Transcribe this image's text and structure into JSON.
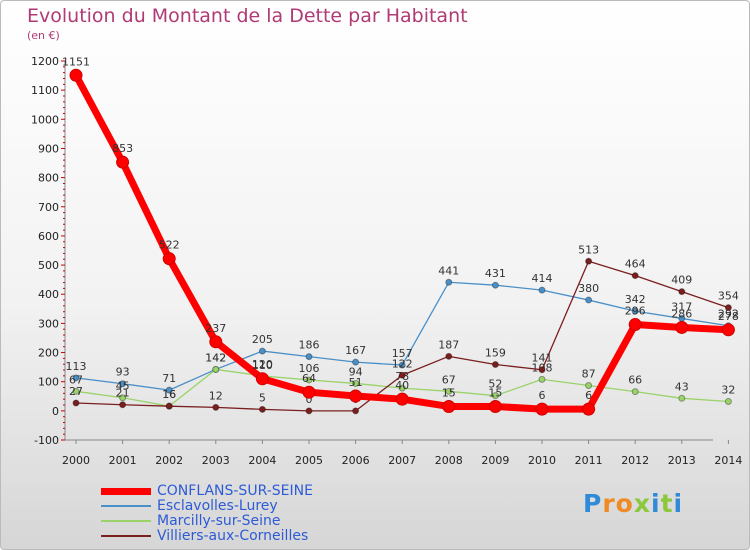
{
  "title": "Evolution du Montant de la Dette par Habitant",
  "unit": "(en €)",
  "brand": [
    "P",
    "r",
    "o",
    "x",
    "i",
    "t",
    "i"
  ],
  "brand_colors": [
    "#2f8ad8",
    "#f08a24",
    "#f08a24",
    "#8cc83c",
    "#2f8ad8",
    "#8cc83c",
    "#2f8ad8"
  ],
  "chart_data": {
    "type": "line",
    "title": "Evolution du Montant de la Dette par Habitant",
    "ylabel": "(en €)",
    "xlabel": "",
    "ylim": [
      -100,
      1200
    ],
    "yticks": [
      "-100",
      "0",
      "100",
      "200",
      "300",
      "400",
      "500",
      "600",
      "700",
      "800",
      "900",
      "1000",
      "1100",
      "1200"
    ],
    "categories": [
      "2000",
      "2001",
      "2002",
      "2003",
      "2004",
      "2005",
      "2006",
      "2007",
      "2008",
      "2009",
      "2010",
      "2011",
      "2012",
      "2013",
      "2014"
    ],
    "series": [
      {
        "name": "Esclavolles-Lurey",
        "color": "#4a90c8",
        "values": [
          113,
          93,
          71,
          142,
          205,
          186,
          167,
          157,
          441,
          431,
          414,
          380,
          342,
          317,
          292
        ],
        "labels": [
          "113",
          "93",
          "71",
          "142",
          "205",
          "186",
          "167",
          "157",
          "441",
          "431",
          "414",
          "380",
          "342",
          "317",
          "292"
        ]
      },
      {
        "name": "Marcilly-sur-Seine",
        "color": "#99d36a",
        "values": [
          67,
          45,
          16,
          142,
          120,
          106,
          94,
          78,
          67,
          52,
          108,
          87,
          66,
          43,
          32
        ],
        "labels": [
          "67",
          "45",
          "16",
          "142",
          "120",
          "106",
          "94",
          "78",
          "67",
          "52",
          "108",
          "87",
          "66",
          "43",
          "32"
        ]
      },
      {
        "name": "Villiers-aux-Corneilles",
        "color": "#7a1e1e",
        "values": [
          27,
          21,
          16,
          12,
          5,
          0,
          0,
          122,
          187,
          159,
          141,
          513,
          464,
          409,
          354
        ],
        "labels": [
          "27",
          "21",
          "16",
          "12",
          "5",
          "0",
          "0",
          "122",
          "187",
          "159",
          "141",
          "513",
          "464",
          "409",
          "354"
        ]
      },
      {
        "name": "CONFLANS-SUR-SEINE",
        "color": "#ff0000",
        "values": [
          1151,
          853,
          522,
          237,
          110,
          64,
          51,
          40,
          15,
          15,
          6,
          6,
          296,
          286,
          278
        ],
        "labels": [
          "1151",
          "853",
          "522",
          "237",
          "110",
          "64",
          "51",
          "40",
          "15",
          "15",
          "6",
          "6",
          "296",
          "286",
          "278"
        ]
      }
    ],
    "legend_order": [
      "CONFLANS-SUR-SEINE",
      "Esclavolles-Lurey",
      "Marcilly-sur-Seine",
      "Villiers-aux-Corneilles"
    ],
    "legend_position": "bottom-left",
    "grid": false
  }
}
